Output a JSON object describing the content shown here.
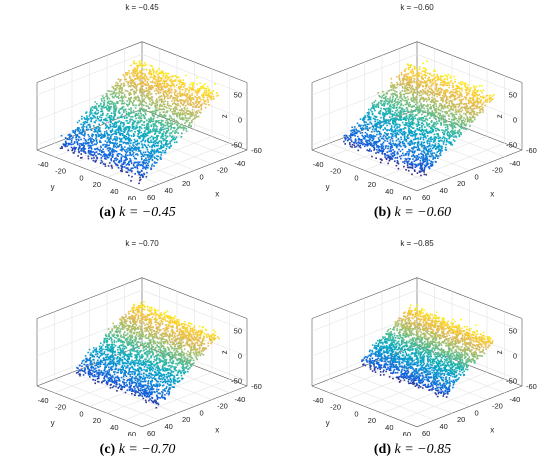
{
  "chart_data": [
    {
      "type": "scatter",
      "subtype": "3d-point-cloud",
      "title": "k = −0.45",
      "caption_label": "(a)",
      "caption_math": "k = −0.45",
      "xlabel": "x",
      "ylabel": "y",
      "zlabel": "z",
      "xticks": [
        "-60",
        "-40",
        "-20",
        "0",
        "20",
        "40",
        "60"
      ],
      "yticks": [
        "-40",
        "-20",
        "0",
        "20",
        "40",
        "60"
      ],
      "zticks": [
        "-50",
        "0",
        "50"
      ],
      "xlim": [
        -60,
        60
      ],
      "ylim": [
        -60,
        60
      ],
      "zlim": [
        -60,
        75
      ],
      "colormap": "parula",
      "surface": {
        "ridge_z": 60,
        "low_z": -50,
        "spread": 1.0
      }
    },
    {
      "type": "scatter",
      "subtype": "3d-point-cloud",
      "title": "k = −0.60",
      "caption_label": "(b)",
      "caption_math": "k = −0.60",
      "xlabel": "x",
      "ylabel": "y",
      "zlabel": "z",
      "xticks": [
        "-60",
        "-40",
        "-20",
        "0",
        "20",
        "40",
        "60"
      ],
      "yticks": [
        "-40",
        "-20",
        "0",
        "20",
        "40",
        "60"
      ],
      "zticks": [
        "-50",
        "0",
        "50"
      ],
      "xlim": [
        -60,
        60
      ],
      "ylim": [
        -60,
        60
      ],
      "zlim": [
        -60,
        75
      ],
      "colormap": "parula",
      "surface": {
        "ridge_z": 55,
        "low_z": -45,
        "spread": 0.9
      }
    },
    {
      "type": "scatter",
      "subtype": "3d-point-cloud",
      "title": "k = −0.70",
      "caption_label": "(c)",
      "caption_math": "k = −0.70",
      "xlabel": "x",
      "ylabel": "y",
      "zlabel": "z",
      "xticks": [
        "-60",
        "-40",
        "-20",
        "0",
        "20",
        "40",
        "60"
      ],
      "yticks": [
        "-40",
        "-20",
        "0",
        "20",
        "40",
        "60"
      ],
      "zticks": [
        "-50",
        "0",
        "50"
      ],
      "xlim": [
        -60,
        60
      ],
      "ylim": [
        -60,
        60
      ],
      "zlim": [
        -60,
        75
      ],
      "colormap": "parula",
      "surface": {
        "ridge_z": 48,
        "low_z": -40,
        "spread": 0.8
      }
    },
    {
      "type": "scatter",
      "subtype": "3d-point-cloud",
      "title": "k = −0.85",
      "caption_label": "(d)",
      "caption_math": "k = −0.85",
      "xlabel": "x",
      "ylabel": "y",
      "zlabel": "z",
      "xticks": [
        "-60",
        "-40",
        "-20",
        "0",
        "20",
        "40",
        "60"
      ],
      "yticks": [
        "-40",
        "-20",
        "0",
        "20",
        "40",
        "60"
      ],
      "zticks": [
        "-50",
        "0",
        "50"
      ],
      "xlim": [
        -60,
        60
      ],
      "ylim": [
        -60,
        60
      ],
      "zlim": [
        -60,
        75
      ],
      "colormap": "parula",
      "surface": {
        "ridge_z": 40,
        "low_z": -32,
        "spread": 0.65
      }
    }
  ]
}
